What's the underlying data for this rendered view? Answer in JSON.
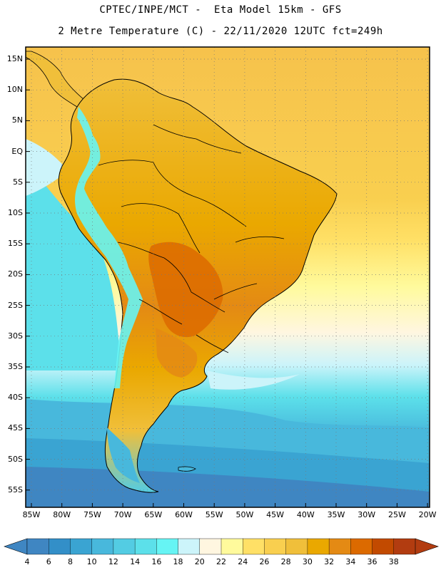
{
  "title": {
    "line1": "CPTEC/INPE/MCT -  Eta Model 15km - GFS",
    "line2": "2 Metre Temperature (C) - 22/11/2020 12UTC fct=249h"
  },
  "lat_labels": [
    "15N",
    "10N",
    "5N",
    "EQ",
    "5S",
    "10S",
    "15S",
    "20S",
    "25S",
    "30S",
    "35S",
    "40S",
    "45S",
    "50S",
    "55S"
  ],
  "lon_labels": [
    "85W",
    "80W",
    "75W",
    "70W",
    "65W",
    "60W",
    "55W",
    "50W",
    "45W",
    "40W",
    "35W",
    "30W",
    "25W",
    "20W"
  ],
  "colorbar": {
    "labels": [
      "4",
      "6",
      "8",
      "10",
      "12",
      "14",
      "16",
      "18",
      "20",
      "22",
      "24",
      "26",
      "28",
      "30",
      "32",
      "34",
      "36",
      "38"
    ],
    "colors": [
      "#3f86c2",
      "#338fc8",
      "#3aa4d2",
      "#48b8dc",
      "#53cce3",
      "#5ce0ea",
      "#66f4f4",
      "#ccf4fa",
      "#fff6e0",
      "#fffa9c",
      "#ffe066",
      "#f9cf4f",
      "#f0bf3a",
      "#eaa800",
      "#e48a14",
      "#dc6a00",
      "#c24a00",
      "#b23c10"
    ]
  },
  "map_colors": {
    "ocean_cold": "#3f86c2",
    "ocean_mid": "#5ce0ea",
    "ocean_warm": "#fff6e0",
    "ocean_tropical": "#ffe066",
    "land_warm": "#f0bf3a",
    "land_hot": "#dc6a00",
    "andes": "#66f4f4"
  }
}
